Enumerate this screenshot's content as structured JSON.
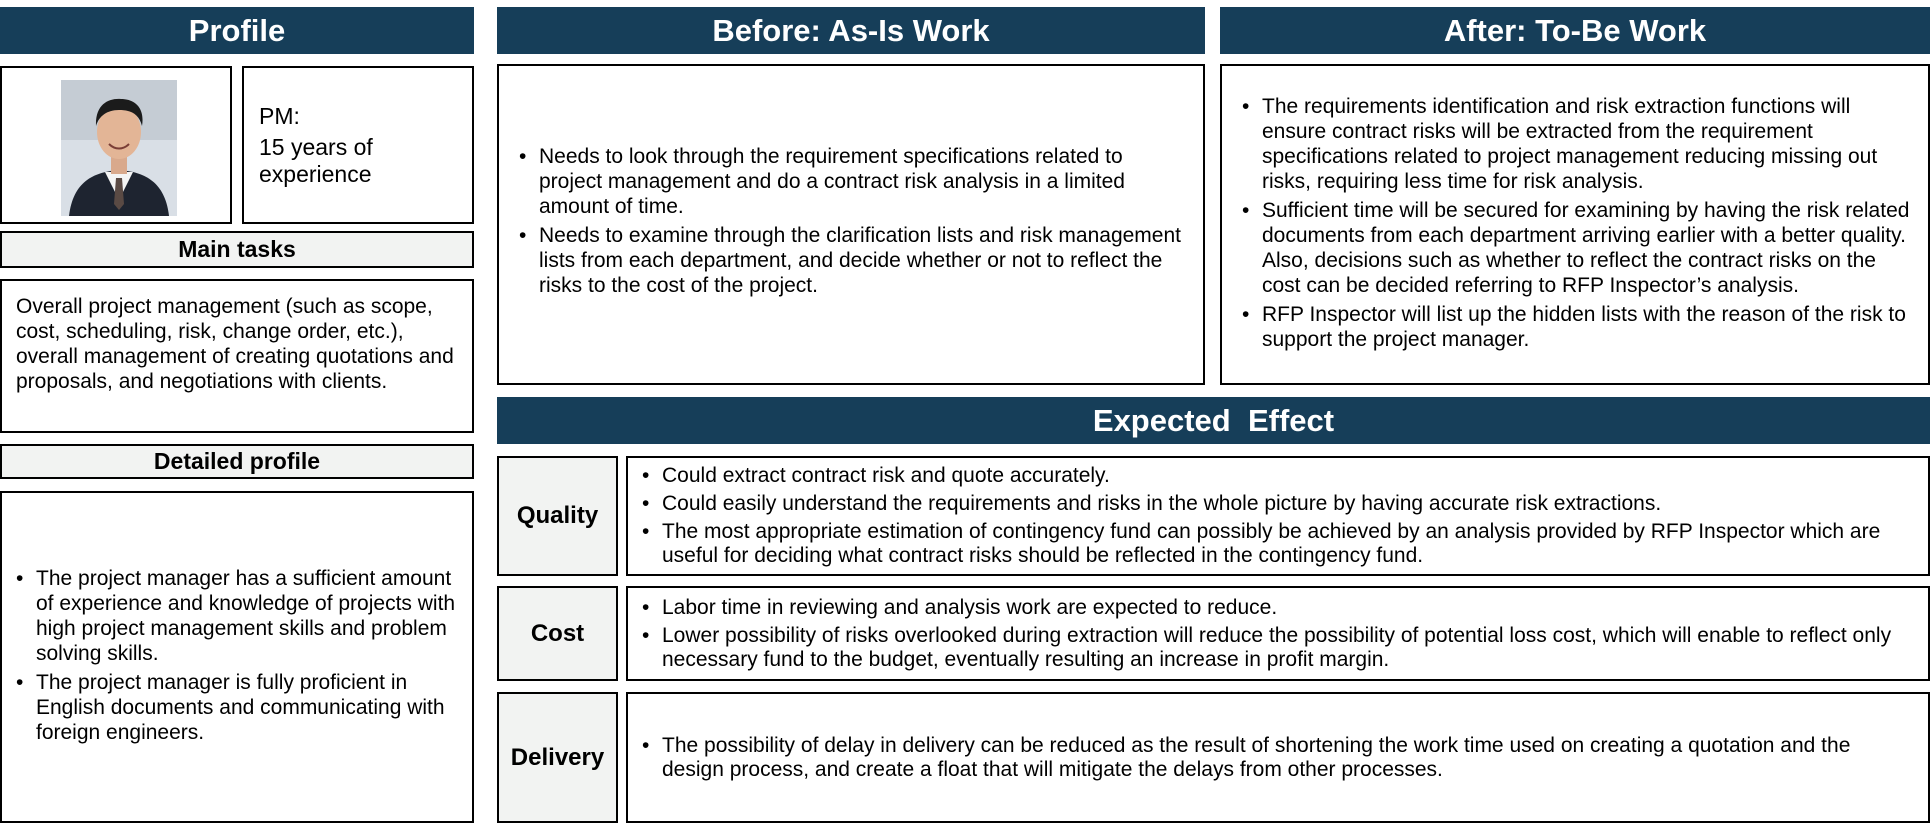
{
  "colors": {
    "header_bg": "#163e59",
    "label_bg": "#f2f3f2"
  },
  "profile": {
    "header": "Profile",
    "avatar_alt": "avatar",
    "role": "PM:",
    "experience": "15 years of experience",
    "main_tasks_label": "Main tasks",
    "main_tasks_text": "Overall project management (such as scope, cost, scheduling, risk, change order, etc.), overall management of creating quotations and proposals, and negotiations with clients.",
    "detailed_label": "Detailed profile",
    "detailed_items": [
      "The project manager has a sufficient amount of experience and knowledge of projects with high project management skills and problem solving skills.",
      "The project manager is fully proficient in English documents and communicating with foreign engineers."
    ]
  },
  "before": {
    "header": "Before: As-Is Work",
    "items": [
      "Needs to look through the requirement specifications related to project management and do a contract risk analysis in a limited amount of time.",
      "Needs to examine through the clarification lists and risk management lists from each department, and decide whether or not to reflect the risks to the cost of the project."
    ]
  },
  "after": {
    "header": "After: To-Be Work",
    "items": [
      "The requirements identification and risk extraction functions will ensure contract risks will be extracted from the requirement specifications related to project management  reducing missing out risks, requiring less time for risk analysis.",
      "Sufficient time will be secured for examining by having the risk related documents from each department arriving earlier with a better quality. Also, decisions such as whether to reflect the contract risks on the cost can be decided referring to RFP Inspector’s analysis.",
      "RFP Inspector will list up the hidden lists with the reason of the risk to support the project manager."
    ]
  },
  "effect": {
    "header": "Expected  Effect",
    "quality": {
      "label": "Quality",
      "items": [
        "Could extract contract risk and quote accurately.",
        "Could easily understand the requirements and  risks in the whole picture by having accurate risk extractions.",
        "The most appropriate estimation of contingency fund can possibly be achieved by an analysis provided by RFP Inspector which are useful for deciding what contract risks should be reflected in the contingency fund."
      ]
    },
    "cost": {
      "label": "Cost",
      "items": [
        "Labor time in reviewing and analysis work are expected to reduce.",
        "Lower possibility of risks overlooked during extraction will reduce the possibility of potential loss cost, which will enable to reflect only necessary fund to the budget, eventually resulting an increase in profit margin."
      ]
    },
    "delivery": {
      "label": "Delivery",
      "items": [
        "The possibility of delay in delivery can be reduced as the result of shortening the work time used on creating a quotation and the design process, and create a float that will mitigate the delays from other processes."
      ]
    }
  }
}
